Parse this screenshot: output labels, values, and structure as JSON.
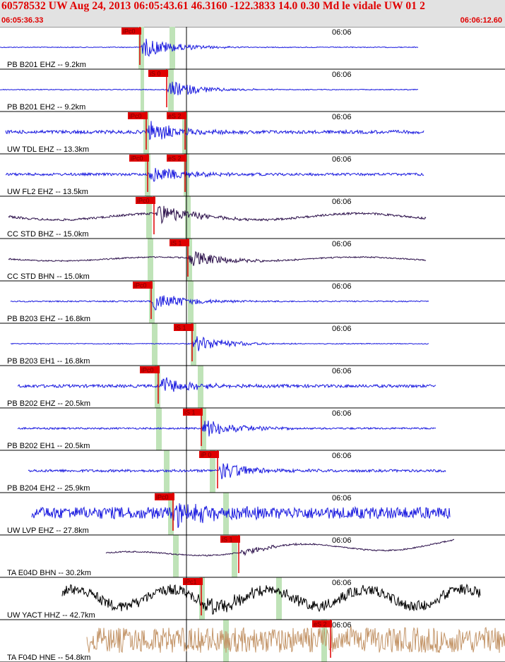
{
  "header": {
    "title": "60578532 UW Aug 24, 2013 06:05:43.61   46.3160 -122.3833 14.0 0.30 Md le vidale UW 01   2",
    "start_time": "06:05:36.33",
    "end_time": "06:06:12.60"
  },
  "colors": {
    "header_bg": "#e2e2e2",
    "header_text": "#e00000",
    "pick_flag": "#e00000",
    "pick_window": "#bfe3b8",
    "gridline": "#000000"
  },
  "chart_data": {
    "type": "seismogram",
    "title": "60578532 UW Aug 24, 2013 06:05:43.61   46.3160 -122.3833 14.0 0.30 Md le vidale UW 01   2",
    "x_range": [
      "06:05:36.33",
      "06:06:12.60"
    ],
    "x_tick_labels": [
      "06:06"
    ],
    "traces": [
      {
        "label": "PB B201 EHZ -- 9.2km",
        "color": "#1a1adf",
        "amplitude": 0.55,
        "noise": 0.02,
        "onset": 198,
        "start": 0,
        "end": 592,
        "picks": [
          {
            "label": "iPc0",
            "x": 198
          }
        ]
      },
      {
        "label": "PB B201 EH2 -- 9.2km",
        "color": "#1a1adf",
        "amplitude": 0.45,
        "noise": 0.02,
        "onset": 236,
        "start": 0,
        "end": 592,
        "picks": [
          {
            "label": "iS 0",
            "x": 236
          }
        ]
      },
      {
        "label": "UW TDL EHZ -- 13.3km",
        "color": "#1a1adf",
        "amplitude": 0.55,
        "noise": 0.08,
        "onset": 207,
        "start": 8,
        "end": 600,
        "picks": [
          {
            "label": "iPc0",
            "x": 207
          },
          {
            "label": "eS 2",
            "x": 262
          }
        ]
      },
      {
        "label": "UW FL2 EHZ -- 13.5km",
        "color": "#1a1adf",
        "amplitude": 0.5,
        "noise": 0.06,
        "onset": 209,
        "start": 8,
        "end": 600,
        "picks": [
          {
            "label": "iPc0",
            "x": 209
          },
          {
            "label": "eS 2",
            "x": 262
          }
        ]
      },
      {
        "label": "CC STD BHZ -- 15.0km",
        "color": "#2b0f4a",
        "amplitude": 0.55,
        "noise": 0.05,
        "onset": 220,
        "start": 12,
        "end": 603,
        "picks": [
          {
            "label": "iPc0",
            "x": 218
          }
        ]
      },
      {
        "label": "CC STD BHN -- 15.0km",
        "color": "#2b0f4a",
        "amplitude": 0.45,
        "noise": 0.03,
        "onset": 266,
        "start": 12,
        "end": 603,
        "picks": [
          {
            "label": "iS 1",
            "x": 266
          }
        ]
      },
      {
        "label": "PB B203 EHZ -- 16.8km",
        "color": "#1a1adf",
        "amplitude": 0.5,
        "noise": 0.03,
        "onset": 214,
        "start": 15,
        "end": 607,
        "picks": [
          {
            "label": "iPc0",
            "x": 214
          }
        ]
      },
      {
        "label": "PB B203 EH1 -- 16.8km",
        "color": "#1a1adf",
        "amplitude": 0.45,
        "noise": 0.02,
        "onset": 272,
        "start": 15,
        "end": 607,
        "picks": [
          {
            "label": "iS 1",
            "x": 272
          }
        ]
      },
      {
        "label": "PB B202 EHZ -- 20.5km",
        "color": "#1a1adf",
        "amplitude": 0.5,
        "noise": 0.07,
        "onset": 224,
        "start": 25,
        "end": 617,
        "picks": [
          {
            "label": "iPc0",
            "x": 224
          }
        ]
      },
      {
        "label": "PB B202 EH1 -- 20.5km",
        "color": "#1a1adf",
        "amplitude": 0.5,
        "noise": 0.04,
        "onset": 285,
        "start": 25,
        "end": 617,
        "picks": [
          {
            "label": "iS 1",
            "x": 285
          }
        ]
      },
      {
        "label": "PB B204 EH2 -- 25.9km",
        "color": "#1a1adf",
        "amplitude": 0.5,
        "noise": 0.06,
        "onset": 308,
        "start": 40,
        "end": 631,
        "picks": [
          {
            "label": "iP 0",
            "x": 308
          }
        ]
      },
      {
        "label": "UW LVP EHZ -- 27.8km",
        "color": "#1a1adf",
        "amplitude": 0.6,
        "noise": 0.28,
        "onset": 245,
        "start": 45,
        "end": 637,
        "picks": [
          {
            "label": "iPc0",
            "x": 245
          }
        ]
      },
      {
        "label": "TA E04D BHN -- 30.2km",
        "color": "#2b0f4a",
        "amplitude": 0.2,
        "noise": 0.03,
        "onset": 338,
        "start": 150,
        "end": 643,
        "picks": [
          {
            "label": "iS 1",
            "x": 338
          }
        ]
      },
      {
        "label": "UW YACT HHZ -- 42.7km",
        "color": "#000000",
        "amplitude": 0.45,
        "noise": 0.25,
        "onset": 285,
        "start": 88,
        "end": 680,
        "picks": [
          {
            "label": "iPc1",
            "x": 285
          }
        ]
      },
      {
        "label": "TA F04D HNE -- 54.8km",
        "color": "#c4966a",
        "amplitude": 0.45,
        "noise": 0.6,
        "onset": 468,
        "start": 123,
        "end": 715,
        "picks": [
          {
            "label": "eS 2",
            "x": 468
          }
        ]
      }
    ],
    "pick_windows": [
      [
        196,
        8,
        1
      ],
      [
        240,
        8,
        1
      ],
      [
        199,
        5,
        2
      ],
      [
        238,
        8,
        2
      ],
      [
        203,
        8,
        3
      ],
      [
        258,
        8,
        3
      ],
      [
        205,
        8,
        4
      ],
      [
        260,
        8,
        4
      ],
      [
        207,
        8,
        5
      ],
      [
        262,
        8,
        5
      ],
      [
        209,
        8,
        6
      ],
      [
        264,
        8,
        6
      ],
      [
        211,
        8,
        7
      ],
      [
        266,
        8,
        7
      ],
      [
        215,
        8,
        8
      ],
      [
        270,
        8,
        8
      ],
      [
        219,
        8,
        9
      ],
      [
        280,
        8,
        9
      ],
      [
        221,
        8,
        10
      ],
      [
        284,
        8,
        10
      ],
      [
        232,
        8,
        11
      ],
      [
        297,
        8,
        11
      ],
      [
        238,
        8,
        12
      ],
      [
        316,
        8,
        12
      ],
      [
        245,
        8,
        13
      ],
      [
        328,
        8,
        13
      ],
      [
        282,
        8,
        14
      ],
      [
        391,
        8,
        14
      ],
      [
        316,
        8,
        15
      ],
      [
        455,
        8,
        15
      ]
    ]
  }
}
